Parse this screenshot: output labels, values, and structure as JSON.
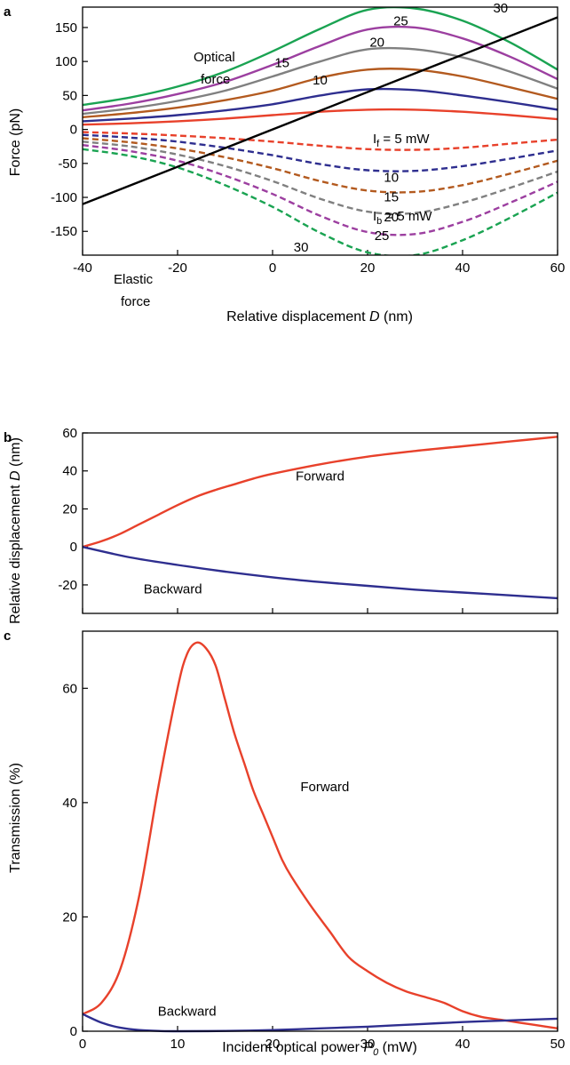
{
  "chart_data": [
    {
      "panel": "a",
      "type": "line",
      "xlabel_main": "Relative displacement ",
      "xlabel_var": "D",
      "xlabel_unit": " (nm)",
      "ylabel": "Force (pN)",
      "xlim": [
        -40,
        60
      ],
      "ylim": [
        -185,
        180
      ],
      "xticks": [
        -40,
        -20,
        0,
        20,
        40,
        60
      ],
      "yticks": [
        -150,
        -100,
        -50,
        0,
        50,
        100,
        150
      ],
      "annotations": {
        "optical_1": "Optical",
        "optical_2": "force",
        "elastic_1": "Elastic",
        "elastic_2": "force",
        "if_label": "I",
        "if_sub": "f",
        "if_rest": " = 5 mW",
        "ib_label": "I",
        "ib_sub": "b",
        "ib_rest": " = 5 mW"
      },
      "elastic_line": {
        "x": [
          -40,
          60
        ],
        "y": [
          -110,
          165
        ],
        "color": "#000000"
      },
      "forward_series": [
        {
          "power": "5",
          "color": "#e8412b",
          "x": [
            -40,
            -30,
            -20,
            -10,
            0,
            10,
            20,
            30,
            40,
            50,
            60
          ],
          "y": [
            7,
            9,
            12,
            16,
            21,
            26,
            29,
            29,
            26,
            21,
            15
          ],
          "label_at": [
            null,
            null
          ]
        },
        {
          "power": "10",
          "color": "#2e2e8f",
          "x": [
            -40,
            -30,
            -20,
            -10,
            0,
            10,
            20,
            30,
            40,
            50,
            60
          ],
          "y": [
            12,
            16,
            21,
            28,
            37,
            50,
            59,
            58,
            50,
            40,
            29
          ],
          "label_at": [
            10,
            66
          ]
        },
        {
          "power": "15",
          "color": "#b35a1f",
          "x": [
            -40,
            -30,
            -20,
            -10,
            0,
            10,
            20,
            30,
            40,
            50,
            60
          ],
          "y": [
            18,
            24,
            32,
            43,
            57,
            76,
            88,
            88,
            78,
            62,
            45
          ],
          "label_at": [
            2,
            92
          ]
        },
        {
          "power": "20",
          "color": "#808080",
          "x": [
            -40,
            -30,
            -20,
            -10,
            0,
            10,
            20,
            30,
            40,
            50,
            60
          ],
          "y": [
            23,
            31,
            42,
            57,
            78,
            100,
            118,
            118,
            106,
            85,
            60
          ],
          "label_at": [
            22,
            122
          ]
        },
        {
          "power": "25",
          "color": "#9c3fa0",
          "x": [
            -40,
            -30,
            -20,
            -10,
            0,
            10,
            20,
            30,
            40,
            50,
            60
          ],
          "y": [
            28,
            38,
            52,
            70,
            95,
            123,
            147,
            150,
            134,
            107,
            74
          ],
          "label_at": [
            27,
            153
          ]
        },
        {
          "power": "30",
          "color": "#1aa352",
          "x": [
            -40,
            -30,
            -20,
            -10,
            0,
            10,
            20,
            30,
            40,
            50,
            60
          ],
          "y": [
            36,
            47,
            63,
            85,
            115,
            148,
            176,
            178,
            160,
            128,
            88
          ],
          "label_at": [
            48,
            172
          ]
        }
      ],
      "backward_series": [
        {
          "power": "5",
          "color": "#e8412b",
          "x": [
            -40,
            -30,
            -20,
            -10,
            0,
            10,
            20,
            30,
            40,
            50,
            60
          ],
          "y": [
            -4,
            -6,
            -9,
            -13,
            -18,
            -24,
            -29,
            -30,
            -27,
            -21,
            -15
          ],
          "label_at": [
            null,
            null
          ]
        },
        {
          "power": "10",
          "color": "#2e2e8f",
          "x": [
            -40,
            -30,
            -20,
            -10,
            0,
            10,
            20,
            30,
            40,
            50,
            60
          ],
          "y": [
            -8,
            -12,
            -18,
            -27,
            -38,
            -51,
            -60,
            -61,
            -54,
            -43,
            -31
          ],
          "label_at": [
            25,
            -77
          ]
        },
        {
          "power": "15",
          "color": "#b35a1f",
          "x": [
            -40,
            -30,
            -20,
            -10,
            0,
            10,
            20,
            30,
            40,
            50,
            60
          ],
          "y": [
            -13,
            -19,
            -28,
            -41,
            -57,
            -76,
            -90,
            -92,
            -82,
            -65,
            -46
          ],
          "label_at": [
            25,
            -106
          ]
        },
        {
          "power": "20",
          "color": "#808080",
          "x": [
            -40,
            -30,
            -20,
            -10,
            0,
            10,
            20,
            30,
            40,
            50,
            60
          ],
          "y": [
            -18,
            -25,
            -37,
            -54,
            -76,
            -102,
            -121,
            -123,
            -108,
            -86,
            -62
          ],
          "label_at": [
            25,
            -135
          ]
        },
        {
          "power": "25",
          "color": "#9c3fa0",
          "x": [
            -40,
            -30,
            -20,
            -10,
            0,
            10,
            20,
            30,
            40,
            50,
            60
          ],
          "y": [
            -23,
            -32,
            -46,
            -68,
            -95,
            -127,
            -151,
            -154,
            -136,
            -108,
            -77
          ],
          "label_at": [
            23,
            -163
          ]
        },
        {
          "power": "30",
          "color": "#1aa352",
          "x": [
            -40,
            -30,
            -20,
            -10,
            0,
            10,
            20,
            30,
            40,
            50,
            60
          ],
          "y": [
            -29,
            -39,
            -56,
            -82,
            -114,
            -152,
            -181,
            -185,
            -163,
            -130,
            -93
          ],
          "label_at": [
            6,
            -180
          ]
        }
      ]
    },
    {
      "panel": "b",
      "type": "line",
      "ylabel_main": "Relative displacement ",
      "ylabel_var": "D",
      "ylabel_unit": " (nm)",
      "xlim": [
        0,
        50
      ],
      "ylim": [
        -35,
        60
      ],
      "yticks": [
        -20,
        0,
        20,
        40,
        60
      ],
      "series": [
        {
          "name": "Forward",
          "color": "#e8412b",
          "x": [
            0,
            2,
            4,
            6,
            8,
            10,
            12,
            14,
            16,
            18,
            20,
            25,
            30,
            35,
            40,
            45,
            50
          ],
          "y": [
            0,
            3,
            7,
            12,
            17,
            22,
            26.5,
            30,
            33,
            36,
            38.5,
            43.5,
            47.5,
            50.5,
            53,
            55.5,
            58
          ]
        },
        {
          "name": "Backward",
          "color": "#2e2e8f",
          "x": [
            0,
            5,
            10,
            15,
            20,
            25,
            30,
            35,
            40,
            45,
            50
          ],
          "y": [
            0,
            -5.5,
            -9.5,
            -13,
            -16,
            -18.5,
            -20.5,
            -22.5,
            -24,
            -25.5,
            -27
          ]
        }
      ],
      "labels_at": {
        "Forward": [
          25,
          35
        ],
        "Backward": [
          9.5,
          -24.5
        ]
      }
    },
    {
      "panel": "c",
      "type": "line",
      "xlabel_main": "Incident optical power ",
      "xlabel_var": "P",
      "xlabel_sub": "0",
      "xlabel_unit": " (mW)",
      "ylabel": "Transmission (%)",
      "xlim": [
        0,
        50
      ],
      "ylim": [
        0,
        70
      ],
      "xticks": [
        0,
        10,
        20,
        30,
        40,
        50
      ],
      "yticks": [
        0,
        20,
        40,
        60
      ],
      "series": [
        {
          "name": "Forward",
          "color": "#e8412b",
          "x": [
            0,
            2,
            4,
            6,
            8,
            10,
            11,
            12,
            13,
            14,
            15,
            16,
            17,
            18,
            19,
            20,
            21,
            22,
            24,
            26,
            28,
            30,
            32,
            34,
            36,
            38,
            40,
            42,
            44,
            46,
            48,
            50
          ],
          "y": [
            3,
            5,
            11,
            24,
            43,
            60,
            66,
            68,
            67,
            64,
            58,
            52,
            47,
            42,
            38,
            34,
            30,
            27,
            22,
            17.5,
            13,
            10.5,
            8.5,
            7,
            6,
            5,
            3.5,
            2.5,
            2,
            1.5,
            1,
            0.5
          ]
        },
        {
          "name": "Backward",
          "color": "#2e2e8f",
          "x": [
            0,
            2,
            4,
            6,
            8,
            10,
            15,
            20,
            25,
            30,
            35,
            40,
            45,
            50
          ],
          "y": [
            3,
            1.5,
            0.6,
            0.2,
            0.05,
            0,
            0.05,
            0.2,
            0.5,
            0.8,
            1.2,
            1.6,
            1.9,
            2.2
          ]
        }
      ],
      "labels_at": {
        "Forward": [
          25.5,
          42
        ],
        "Backward": [
          11,
          2.7
        ]
      }
    }
  ]
}
